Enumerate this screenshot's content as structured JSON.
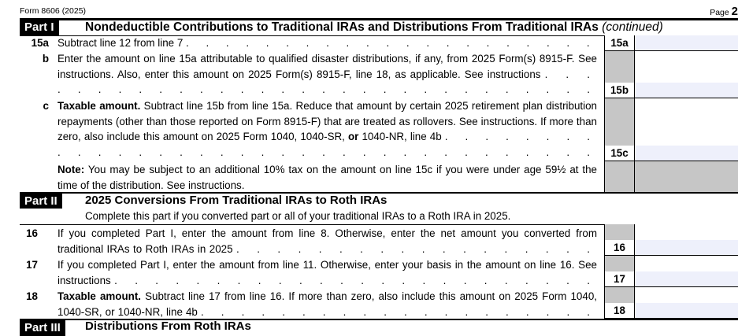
{
  "header": {
    "form": "Form 8606 (2025)",
    "page_label": "Page",
    "page_num": "2"
  },
  "part1": {
    "label": "Part I",
    "title": "Nondeductible Contributions to Traditional IRAs and Distributions From Traditional IRAs",
    "cont": "(continued)"
  },
  "lines": {
    "l15a": {
      "num": "15a",
      "text": "Subtract line 12 from line 7",
      "box": "15a"
    },
    "l15b": {
      "num": "b",
      "text": "Enter the amount on line 15a attributable to qualified disaster distributions, if any, from 2025 Form(s) 8915-F. See instructions. Also, enter this amount on 2025 Form(s) 8915-F, line 18, as applicable. See instructions",
      "box": "15b"
    },
    "l15c": {
      "num": "c",
      "bold": "Taxable amount.",
      "text": " Subtract line 15b from line 15a. Reduce that amount by certain 2025 retirement plan distribution repayments (other than those reported on Form 8915-F) that are treated as rollovers. See instructions. If more than zero, also include this amount on 2025 Form 1040, 1040-SR, ",
      "or": "or",
      "text2": " 1040-NR, line 4b",
      "box": "15c"
    },
    "note": {
      "bold": "Note:",
      "text": " You may be subject to an additional 10% tax on the amount on line 15c if you were under age 59½ at the time of the distribution. See instructions."
    },
    "l16": {
      "num": "16",
      "text": "If you completed Part I, enter the amount from line 8. Otherwise, enter the net amount you converted from traditional IRAs to Roth IRAs in 2025",
      "box": "16"
    },
    "l17": {
      "num": "17",
      "text": "If you completed Part I, enter the amount from line 11. Otherwise, enter your basis in the amount on line 16. See instructions",
      "box": "17"
    },
    "l18": {
      "num": "18",
      "bold": "Taxable amount.",
      "text": " Subtract line 17 from line 16. If more than zero, also include this amount on 2025 Form 1040, 1040-SR, or 1040-NR, line 4b",
      "box": "18"
    }
  },
  "part2": {
    "label": "Part II",
    "title": "2025 Conversions From Traditional IRAs to Roth IRAs",
    "subtitle": "Complete this part if you converted part or all of your traditional IRAs to a Roth IRA in 2025."
  },
  "part3": {
    "label": "Part III",
    "title": "Distributions From Roth IRAs"
  },
  "dots": ". . . . . . . . . . . . . . . . . . . . . . . . . . . . . . . . . . . . . . . . . . . . . . . . . . . . . ."
}
